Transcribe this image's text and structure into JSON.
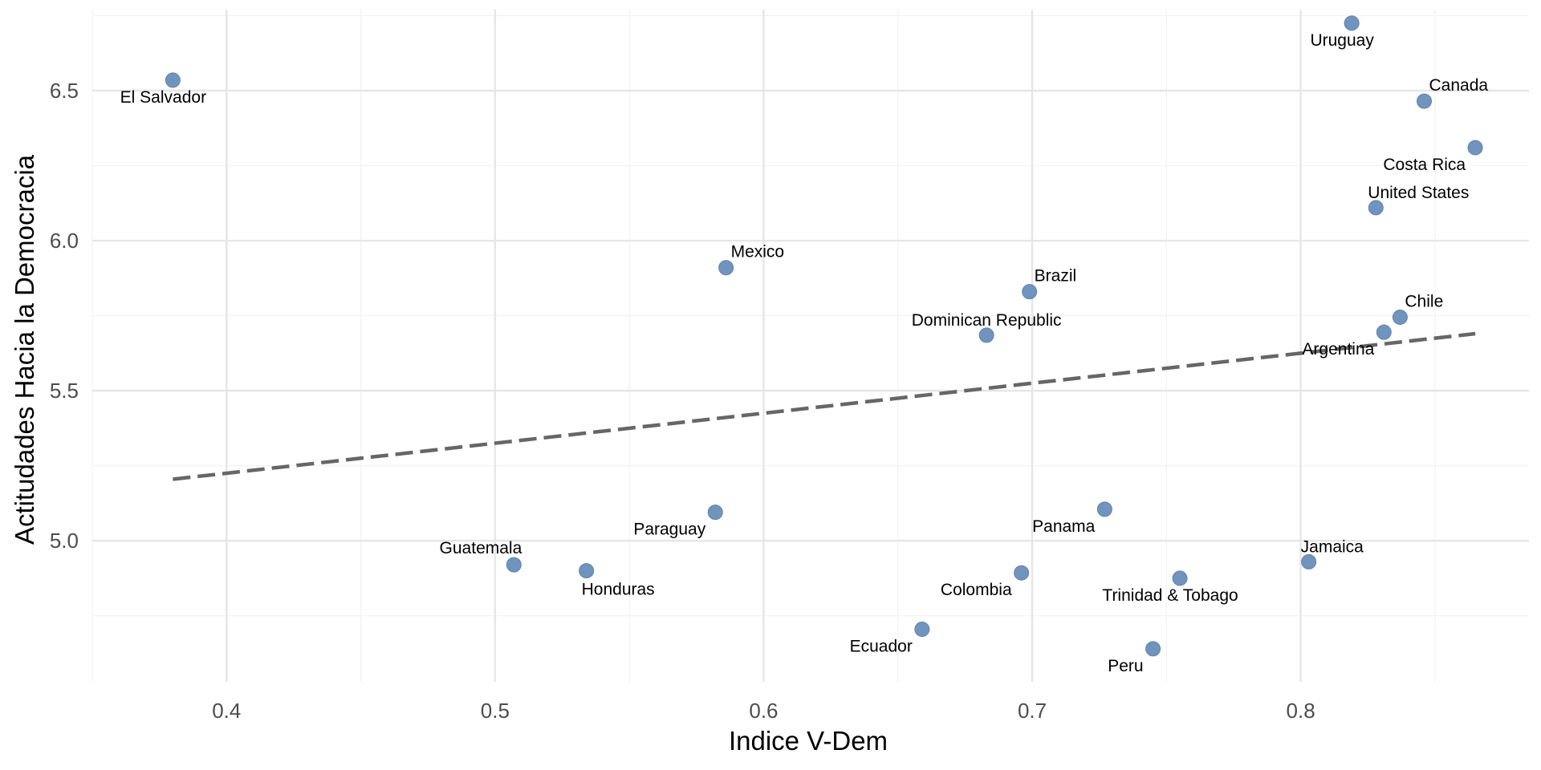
{
  "chart_data": {
    "type": "scatter",
    "title": "",
    "xlabel": "Indice V-Dem",
    "ylabel": "Actitudades Hacia la Democracia",
    "xlim": [
      0.35,
      0.885
    ],
    "ylim": [
      4.53,
      6.77
    ],
    "xticks": [
      0.4,
      0.5,
      0.6,
      0.7,
      0.8
    ],
    "xtick_labels": [
      "0.4",
      "0.5",
      "0.6",
      "0.7",
      "0.8"
    ],
    "yticks": [
      5.0,
      5.5,
      6.0,
      6.5
    ],
    "ytick_labels": [
      "5.0",
      "5.5",
      "6.0",
      "6.5"
    ],
    "grid": true,
    "point_color": "#7094bd",
    "trend_color": "#666666",
    "trend_line": {
      "x": [
        0.38,
        0.865
      ],
      "y": [
        5.205,
        5.69
      ]
    },
    "points": [
      {
        "label": "El Salvador",
        "x": 0.38,
        "y": 6.535,
        "anchor": "middle",
        "pos": "below-left"
      },
      {
        "label": "Uruguay",
        "x": 0.819,
        "y": 6.725,
        "anchor": "middle",
        "pos": "below-left"
      },
      {
        "label": "Canada",
        "x": 0.846,
        "y": 6.465,
        "anchor": "start",
        "pos": "above-right"
      },
      {
        "label": "Costa Rica",
        "x": 0.865,
        "y": 6.31,
        "anchor": "end",
        "pos": "below-left"
      },
      {
        "label": "United States",
        "x": 0.828,
        "y": 6.11,
        "anchor": "start",
        "pos": "above"
      },
      {
        "label": "Mexico",
        "x": 0.586,
        "y": 5.91,
        "anchor": "start",
        "pos": "above-right"
      },
      {
        "label": "Brazil",
        "x": 0.699,
        "y": 5.83,
        "anchor": "start",
        "pos": "above-right"
      },
      {
        "label": "Chile",
        "x": 0.837,
        "y": 5.745,
        "anchor": "start",
        "pos": "above-right"
      },
      {
        "label": "Dominican Republic",
        "x": 0.683,
        "y": 5.685,
        "anchor": "middle",
        "pos": "above"
      },
      {
        "label": "Argentina",
        "x": 0.831,
        "y": 5.695,
        "anchor": "end",
        "pos": "below-left"
      },
      {
        "label": "Panama",
        "x": 0.727,
        "y": 5.105,
        "anchor": "end",
        "pos": "below-left"
      },
      {
        "label": "Paraguay",
        "x": 0.582,
        "y": 5.095,
        "anchor": "end",
        "pos": "below-left"
      },
      {
        "label": "Jamaica",
        "x": 0.803,
        "y": 4.93,
        "anchor": "start",
        "pos": "above"
      },
      {
        "label": "Guatemala",
        "x": 0.507,
        "y": 4.92,
        "anchor": "end",
        "pos": "above-left"
      },
      {
        "label": "Honduras",
        "x": 0.534,
        "y": 4.9,
        "anchor": "start",
        "pos": "below"
      },
      {
        "label": "Colombia",
        "x": 0.696,
        "y": 4.893,
        "anchor": "end",
        "pos": "below-left"
      },
      {
        "label": "Trinidad & Tobago",
        "x": 0.755,
        "y": 4.875,
        "anchor": "middle",
        "pos": "below-left"
      },
      {
        "label": "Ecuador",
        "x": 0.659,
        "y": 4.705,
        "anchor": "end",
        "pos": "below-left"
      },
      {
        "label": "Peru",
        "x": 0.745,
        "y": 4.64,
        "anchor": "end",
        "pos": "below-left"
      }
    ]
  }
}
